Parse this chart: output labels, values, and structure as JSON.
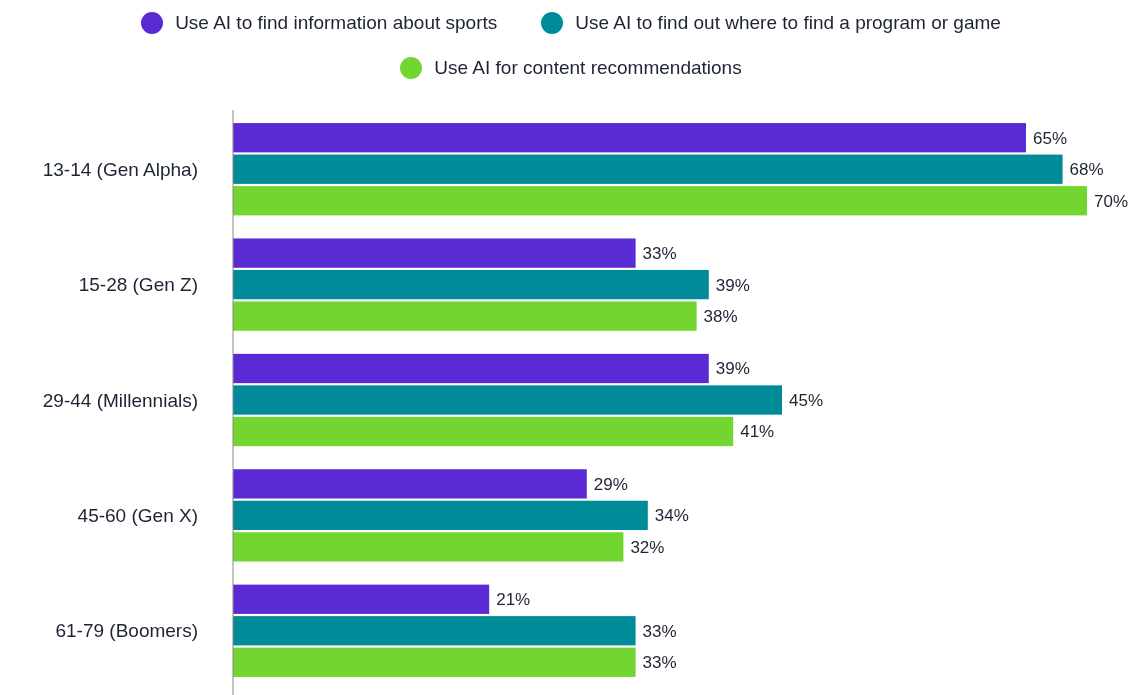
{
  "chart_data": {
    "type": "bar",
    "orientation": "horizontal",
    "categories": [
      "13-14 (Gen Alpha)",
      "15-28 (Gen Z)",
      "29-44 (Millennials)",
      "45-60 (Gen X)",
      "61-79 (Boomers)"
    ],
    "series": [
      {
        "name": "Use AI to find information about sports",
        "color": "#5a2bd4",
        "values": [
          65,
          33,
          39,
          29,
          21
        ],
        "value_labels": [
          "65%",
          "33%",
          "39%",
          "29%",
          "21%"
        ]
      },
      {
        "name": "Use AI to find out where to find a program or game",
        "color": "#008b99",
        "values": [
          68,
          39,
          45,
          34,
          33
        ],
        "value_labels": [
          "68%",
          "39%",
          "45%",
          "34%",
          "33%"
        ]
      },
      {
        "name": "Use AI for content recommendations",
        "color": "#73d52f",
        "values": [
          70,
          38,
          41,
          32,
          33
        ],
        "value_labels": [
          "70%",
          "38%",
          "41%",
          "32%",
          "33%"
        ]
      }
    ],
    "legend": "top",
    "grid": false
  }
}
